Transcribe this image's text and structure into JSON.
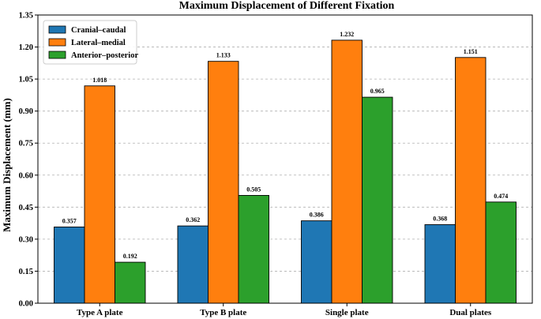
{
  "chart_data": {
    "type": "bar",
    "title": "Maximum Displacement of Different Fixation",
    "xlabel": "",
    "ylabel": "Maximum Displacement (mm)",
    "categories": [
      "Type A plate",
      "Type B plate",
      "Single plate",
      "Dual plates"
    ],
    "series": [
      {
        "name": "Cranial–caudal",
        "color": "#1f77b4",
        "values": [
          0.357,
          0.362,
          0.386,
          0.368
        ]
      },
      {
        "name": "Lateral–medial",
        "color": "#ff7f0e",
        "values": [
          1.018,
          1.133,
          1.232,
          1.151
        ]
      },
      {
        "name": "Anterior–posterior",
        "color": "#2ca02c",
        "values": [
          0.192,
          0.505,
          0.965,
          0.474
        ]
      }
    ],
    "ylim": [
      0,
      1.35
    ],
    "yticks": [
      0.0,
      0.15,
      0.3,
      0.45,
      0.6,
      0.75,
      0.9,
      1.05,
      1.2,
      1.35
    ],
    "grid": "horizontal-dashed",
    "legend_position": "top-left"
  }
}
